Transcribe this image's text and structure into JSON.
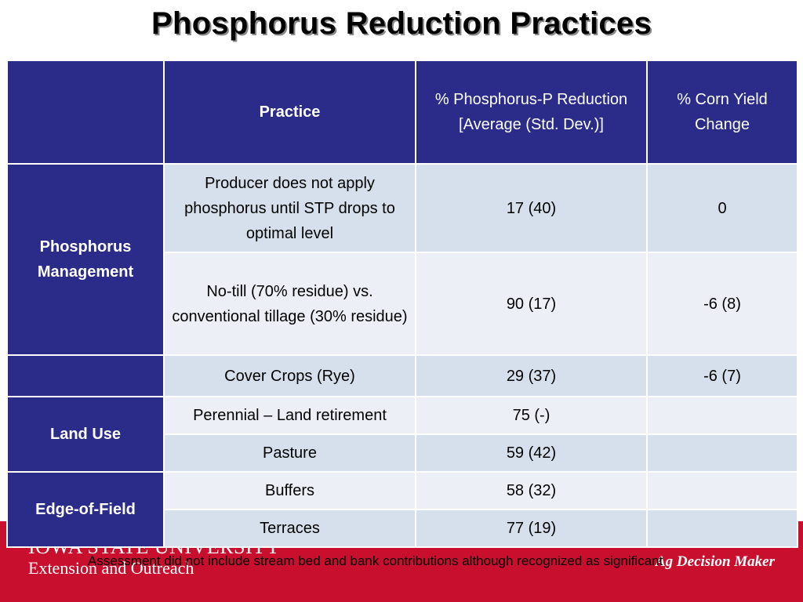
{
  "title": "Phosphorus Reduction Practices",
  "table": {
    "headers": {
      "blank": "",
      "practice": "Practice",
      "reduction": "% Phosphorus-P Reduction [Average (Std. Dev.)]",
      "yield": "% Corn Yield Change"
    },
    "categories": {
      "phosphorus_management": "Phosphorus Management",
      "land_use": "Land Use",
      "edge_of_field": "Edge-of-Field"
    },
    "rows": [
      {
        "practice": "Producer does not apply phosphorus until STP drops to optimal level",
        "reduction": "17 (40)",
        "yield": "0"
      },
      {
        "practice": "No-till (70% residue) vs. conventional tillage (30% residue)",
        "reduction": "90 (17)",
        "yield": "-6 (8)"
      },
      {
        "practice": "Cover Crops (Rye)",
        "reduction": "29 (37)",
        "yield": "-6 (7)"
      },
      {
        "practice": "Perennial – Land retirement",
        "reduction": "75 (-)",
        "yield": ""
      },
      {
        "practice": "Pasture",
        "reduction": "59 (42)",
        "yield": ""
      },
      {
        "practice": "Buffers",
        "reduction": "58 (32)",
        "yield": ""
      },
      {
        "practice": "Terraces",
        "reduction": "77 (19)",
        "yield": ""
      }
    ]
  },
  "footnote": "Assessment did not include stream bed and bank contributions although recognized as significant",
  "footer": {
    "university_line1": "IOWA STATE UNIVERSITY",
    "university_line2": "Extension and Outreach",
    "ag_logo": "Ag Decision Maker"
  },
  "colors": {
    "header_blue": "#2b2b8a",
    "row_dark": "#d6e0ec",
    "row_light": "#ecf0f6",
    "footer_red": "#c8102e"
  }
}
